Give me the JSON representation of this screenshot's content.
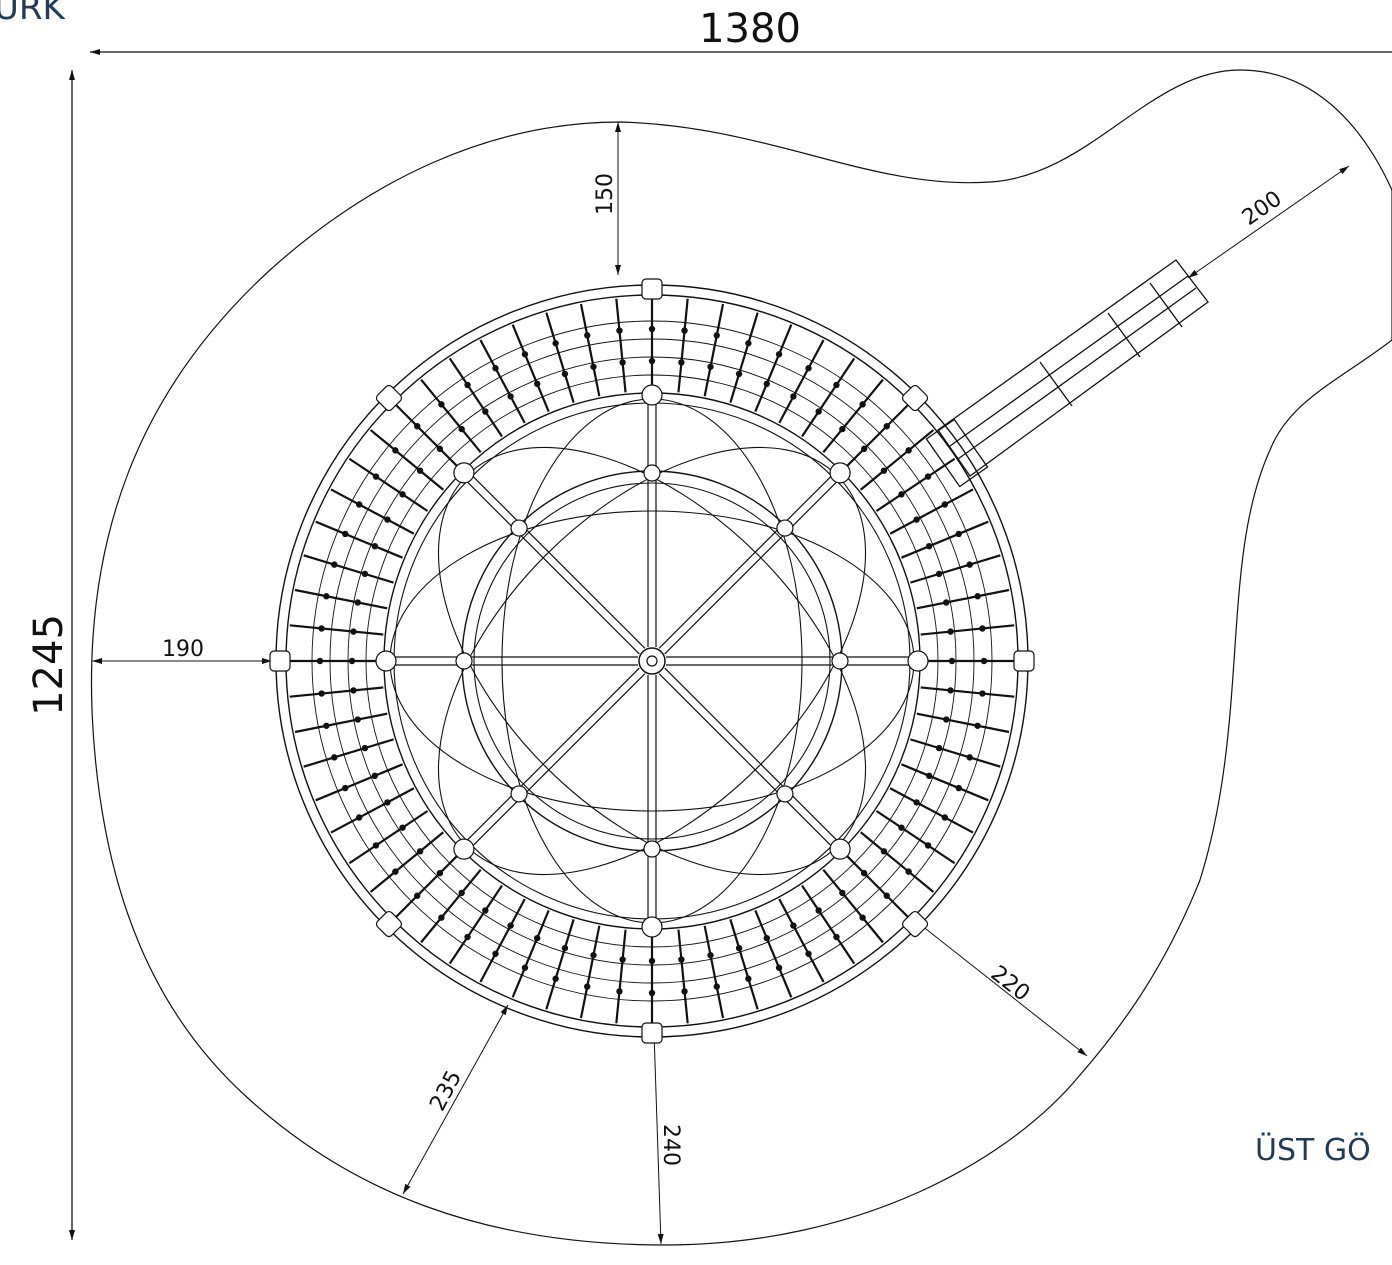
{
  "drawing": {
    "corner_label_fragment": "URK",
    "view_label_fragment": "ÜST GÖ",
    "colors": {
      "line": "#111111",
      "label": "#1f3b57",
      "background": "#ffffff"
    }
  },
  "dimensions": {
    "overall_width": "1380",
    "overall_height": "1245",
    "top_clearance": "150",
    "left_clearance": "190",
    "slide_clearance": "200",
    "lower_right_clearance": "220",
    "lower_left_clearance": "235",
    "bottom_clearance": "240"
  }
}
